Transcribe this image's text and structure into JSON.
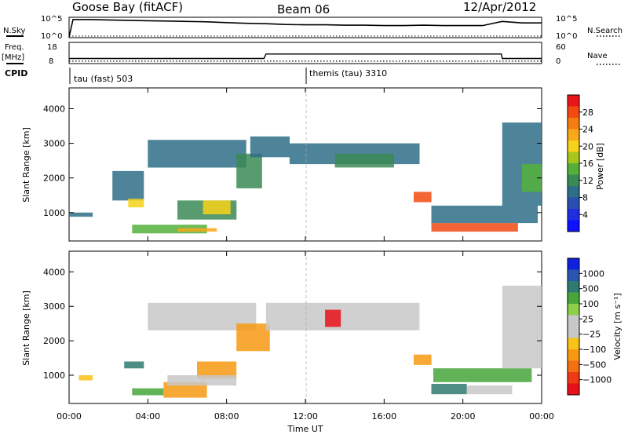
{
  "header": {
    "station": "Goose Bay (fitACF)",
    "beam": "Beam 06",
    "date": "12/Apr/2012"
  },
  "top_panels": {
    "nsky_label": "N.Sky",
    "nsky_ticks": [
      "10^5",
      "10^0"
    ],
    "nsearch_label": "N.Search",
    "nsearch_ticks": [
      "10^5",
      "10^0"
    ],
    "freq_label": "Freq.",
    "freq_unit": "[MHz]",
    "freq_ticks": [
      "18",
      "8"
    ],
    "nave_label": "Nave",
    "nave_ticks": [
      "60",
      "0"
    ],
    "cpid_label": "CPID",
    "cpid_segments": [
      {
        "label": "tau (fast) 503",
        "start_hour": 0,
        "end_hour": 12
      },
      {
        "label": "themis (tau) 3310",
        "start_hour": 12,
        "end_hour": 24
      }
    ]
  },
  "axes": {
    "y_label": "Slant Range [km]",
    "y_ticks": [
      "1000",
      "2000",
      "3000",
      "4000"
    ],
    "x_label": "Time UT",
    "x_ticks": [
      "00:00",
      "04:00",
      "08:00",
      "12:00",
      "16:00",
      "20:00",
      "00:00"
    ]
  },
  "colorbars": {
    "power": {
      "label": "Power [dB]",
      "ticks": [
        "28",
        "24",
        "20",
        "16",
        "12",
        "8",
        "4"
      ],
      "colors": [
        "#e8161a",
        "#f24a12",
        "#f77d12",
        "#f9a81a",
        "#f7d21a",
        "#a8c71d",
        "#55b03a",
        "#3a8a55",
        "#2e6e88",
        "#2a4fb0",
        "#1f2ee0",
        "#1010ff"
      ]
    },
    "velocity": {
      "label": "Velocity [m s⁻¹]",
      "ticks": [
        "1000",
        "500",
        "100",
        "25",
        "−25",
        "−100",
        "−500",
        "−1000"
      ],
      "colors": [
        "#1020e0",
        "#2a55b0",
        "#2f7a70",
        "#47a53a",
        "#8ccf4a",
        "#c8c8c8",
        "#c8c8c8",
        "#f7c21a",
        "#f79a12",
        "#f47012",
        "#ee3a12",
        "#e8101a"
      ]
    }
  },
  "chart_data": [
    {
      "type": "line",
      "title": "N.Sky / N.Search",
      "x_unit": "hours UT",
      "x": [
        0,
        0.2,
        1,
        2,
        3,
        4,
        5,
        6,
        7,
        8,
        9,
        10,
        11,
        12,
        13,
        14,
        15,
        16,
        17,
        18,
        19,
        20,
        21,
        22,
        23,
        24
      ],
      "series": [
        {
          "name": "N.Sky",
          "log10_values": [
            0,
            4.6,
            4.6,
            4.5,
            4.4,
            4.3,
            4.2,
            4.1,
            4.0,
            3.8,
            3.6,
            3.5,
            3.3,
            3.2,
            3.2,
            3.1,
            3.1,
            3.0,
            3.0,
            3.1,
            3.0,
            3.0,
            3.0,
            4.1,
            3.7,
            3.7
          ]
        }
      ]
    },
    {
      "type": "line",
      "title": "Freq. / Nave",
      "x_unit": "hours UT",
      "x": [
        0,
        9.9,
        10,
        21.95,
        22,
        24
      ],
      "series": [
        {
          "name": "Freq.",
          "values": [
            10.2,
            10.2,
            12.5,
            12.5,
            10.2,
            10.2
          ]
        },
        {
          "name": "Nave",
          "values": [
            5,
            5,
            5,
            5,
            5,
            5
          ]
        }
      ]
    },
    {
      "type": "heatmap",
      "title": "Power [dB]",
      "x_unit": "hours UT",
      "y_unit": "km",
      "xlim": [
        0,
        24
      ],
      "ylim": [
        180,
        4600
      ],
      "patches": [
        {
          "x": [
            0,
            1.2
          ],
          "y": [
            880,
            1000
          ],
          "value": 8
        },
        {
          "x": [
            2.2,
            3.8
          ],
          "y": [
            1350,
            2200
          ],
          "value": 8
        },
        {
          "x": [
            3.0,
            3.8
          ],
          "y": [
            1150,
            1400
          ],
          "value": 18
        },
        {
          "x": [
            3.2,
            7.0
          ],
          "y": [
            400,
            650
          ],
          "value": 14
        },
        {
          "x": [
            5.5,
            7.5
          ],
          "y": [
            450,
            550
          ],
          "value": 22
        },
        {
          "x": [
            5.5,
            8.5
          ],
          "y": [
            800,
            1350
          ],
          "value": 12
        },
        {
          "x": [
            6.8,
            8.2
          ],
          "y": [
            950,
            1350
          ],
          "value": 20
        },
        {
          "x": [
            4.0,
            9.0
          ],
          "y": [
            2300,
            3100
          ],
          "value": 8
        },
        {
          "x": [
            8.5,
            9.8
          ],
          "y": [
            1700,
            2700
          ],
          "value": 10
        },
        {
          "x": [
            9.2,
            11.2
          ],
          "y": [
            2600,
            3200
          ],
          "value": 8
        },
        {
          "x": [
            11.2,
            17.8
          ],
          "y": [
            2400,
            3000
          ],
          "value": 8
        },
        {
          "x": [
            13.5,
            16.5
          ],
          "y": [
            2300,
            2700
          ],
          "value": 10
        },
        {
          "x": [
            17.5,
            18.4
          ],
          "y": [
            1300,
            1600
          ],
          "value": 26
        },
        {
          "x": [
            18.4,
            22.8
          ],
          "y": [
            450,
            700
          ],
          "value": 26
        },
        {
          "x": [
            18.4,
            23.8
          ],
          "y": [
            700,
            1200
          ],
          "value": 8
        },
        {
          "x": [
            22.0,
            24.0
          ],
          "y": [
            1200,
            3600
          ],
          "value": 8
        },
        {
          "x": [
            23.0,
            24.0
          ],
          "y": [
            1600,
            2400
          ],
          "value": 14
        }
      ]
    },
    {
      "type": "heatmap",
      "title": "Velocity [m s⁻¹]",
      "x_unit": "hours UT",
      "y_unit": "km",
      "xlim": [
        0,
        24
      ],
      "ylim": [
        180,
        4600
      ],
      "patches": [
        {
          "x": [
            0.5,
            1.2
          ],
          "y": [
            850,
            1000
          ],
          "value": -100
        },
        {
          "x": [
            2.8,
            3.8
          ],
          "y": [
            1200,
            1400
          ],
          "value": 300
        },
        {
          "x": [
            3.2,
            4.8
          ],
          "y": [
            420,
            620
          ],
          "value": 150
        },
        {
          "x": [
            4.8,
            7.0
          ],
          "y": [
            350,
            800
          ],
          "value": -250
        },
        {
          "x": [
            6.5,
            8.5
          ],
          "y": [
            900,
            1400
          ],
          "value": -250
        },
        {
          "x": [
            5.0,
            8.5
          ],
          "y": [
            700,
            1000
          ],
          "value": 0
        },
        {
          "x": [
            4.0,
            9.5
          ],
          "y": [
            2300,
            3100
          ],
          "value": 0
        },
        {
          "x": [
            8.5,
            10.2
          ],
          "y": [
            1700,
            2500
          ],
          "value": -200
        },
        {
          "x": [
            10.0,
            17.8
          ],
          "y": [
            2300,
            3100
          ],
          "value": 0
        },
        {
          "x": [
            13.0,
            13.8
          ],
          "y": [
            2400,
            2900
          ],
          "value": -800
        },
        {
          "x": [
            17.5,
            18.4
          ],
          "y": [
            1300,
            1600
          ],
          "value": -200
        },
        {
          "x": [
            18.4,
            20.2
          ],
          "y": [
            450,
            750
          ],
          "value": 300
        },
        {
          "x": [
            20.2,
            22.5
          ],
          "y": [
            450,
            700
          ],
          "value": 0
        },
        {
          "x": [
            18.5,
            23.5
          ],
          "y": [
            800,
            1200
          ],
          "value": 150
        },
        {
          "x": [
            22.0,
            24.0
          ],
          "y": [
            1200,
            3600
          ],
          "value": 0
        }
      ]
    }
  ]
}
